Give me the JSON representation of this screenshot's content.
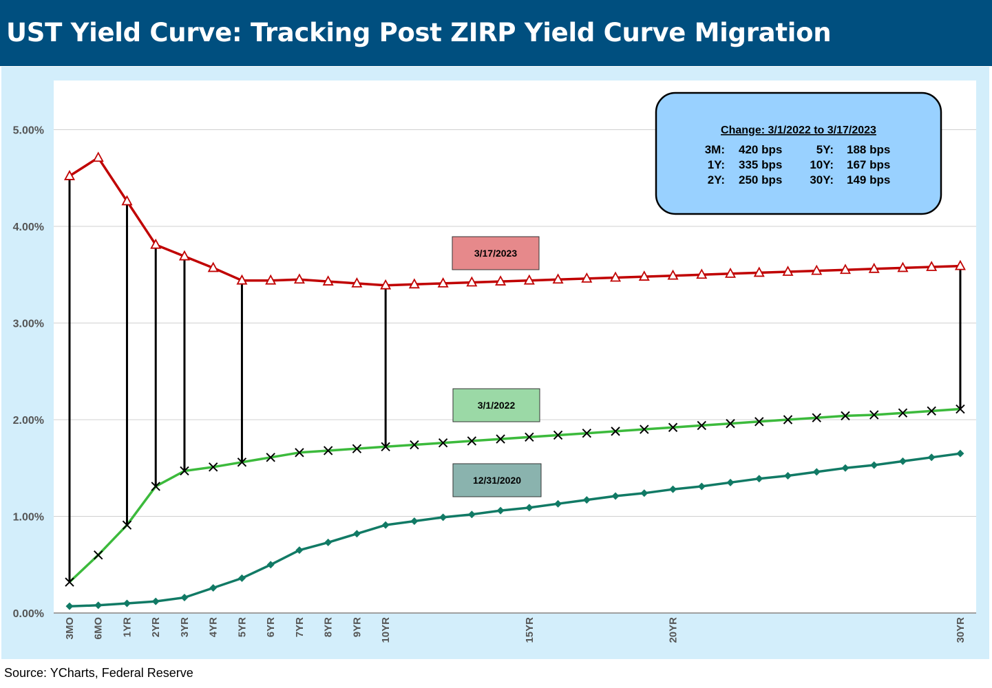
{
  "title": "UST Yield Curve: Tracking Post ZIRP Yield Curve Migration",
  "source": "Source: YCharts, Federal Reserve",
  "colors": {
    "header_bg": "#004f7f",
    "frame_bg": "#d3eefb",
    "series_2023": "#c00000",
    "series_2022": "#3cba3c",
    "series_2020": "#117a65",
    "connector": "#000000",
    "change_box": "#99d1ff"
  },
  "change_box": {
    "title": "Change: 3/1/2022 to 3/17/2023",
    "rows": [
      [
        {
          "k": "3M:",
          "v": "420 bps"
        },
        {
          "k": "5Y:",
          "v": "188 bps"
        }
      ],
      [
        {
          "k": "1Y:",
          "v": "335 bps"
        },
        {
          "k": "10Y:",
          "v": "167 bps"
        }
      ],
      [
        {
          "k": "2Y:",
          "v": "250 bps"
        },
        {
          "k": "30Y:",
          "v": "149 bps"
        }
      ]
    ]
  },
  "chart_data": {
    "type": "line",
    "x": [
      "3MO",
      "6MO",
      "1YR",
      "2YR",
      "3YR",
      "4YR",
      "5YR",
      "6YR",
      "7YR",
      "8YR",
      "9YR",
      "10YR",
      "11YR",
      "12YR",
      "13YR",
      "14YR",
      "15YR",
      "16YR",
      "17YR",
      "18YR",
      "19YR",
      "20YR",
      "21YR",
      "22YR",
      "23YR",
      "24YR",
      "25YR",
      "26YR",
      "27YR",
      "28YR",
      "29YR",
      "30YR"
    ],
    "x_tick_labels": [
      "3MO",
      "6MO",
      "1YR",
      "2YR",
      "3YR",
      "4YR",
      "5YR",
      "6YR",
      "7YR",
      "8YR",
      "9YR",
      "10YR",
      "",
      "",
      "",
      "",
      "15YR",
      "",
      "",
      "",
      "",
      "20YR",
      "",
      "",
      "",
      "",
      "",
      "",
      "",
      "",
      "",
      "30YR"
    ],
    "ylim": [
      0,
      5.5
    ],
    "y_ticks": [
      0,
      1,
      2,
      3,
      4,
      5
    ],
    "y_tick_labels": [
      "0.00%",
      "1.00%",
      "2.00%",
      "3.00%",
      "4.00%",
      "5.00%"
    ],
    "grid": true,
    "series": [
      {
        "name": "3/17/2023",
        "marker": "triangle",
        "values": [
          4.52,
          4.71,
          4.26,
          3.81,
          3.69,
          3.57,
          3.44,
          3.44,
          3.45,
          3.43,
          3.41,
          3.39,
          3.4,
          3.41,
          3.42,
          3.43,
          3.44,
          3.45,
          3.46,
          3.47,
          3.48,
          3.49,
          3.5,
          3.51,
          3.52,
          3.53,
          3.54,
          3.55,
          3.56,
          3.57,
          3.58,
          3.59
        ]
      },
      {
        "name": "3/1/2022",
        "marker": "x",
        "values": [
          0.32,
          0.6,
          0.91,
          1.31,
          1.47,
          1.51,
          1.56,
          1.61,
          1.66,
          1.68,
          1.7,
          1.72,
          1.74,
          1.76,
          1.78,
          1.8,
          1.82,
          1.84,
          1.86,
          1.88,
          1.9,
          1.92,
          1.94,
          1.96,
          1.98,
          2.0,
          2.02,
          2.04,
          2.05,
          2.07,
          2.09,
          2.11
        ]
      },
      {
        "name": "12/31/2020",
        "marker": "diamond",
        "values": [
          0.07,
          0.08,
          0.1,
          0.12,
          0.16,
          0.26,
          0.36,
          0.5,
          0.65,
          0.73,
          0.82,
          0.91,
          0.95,
          0.99,
          1.02,
          1.06,
          1.09,
          1.13,
          1.17,
          1.21,
          1.24,
          1.28,
          1.31,
          1.35,
          1.39,
          1.42,
          1.46,
          1.5,
          1.53,
          1.57,
          1.61,
          1.65
        ]
      }
    ],
    "connectors": [
      "3MO",
      "1YR",
      "2YR",
      "3YR",
      "5YR",
      "10YR",
      "30YR"
    ]
  }
}
